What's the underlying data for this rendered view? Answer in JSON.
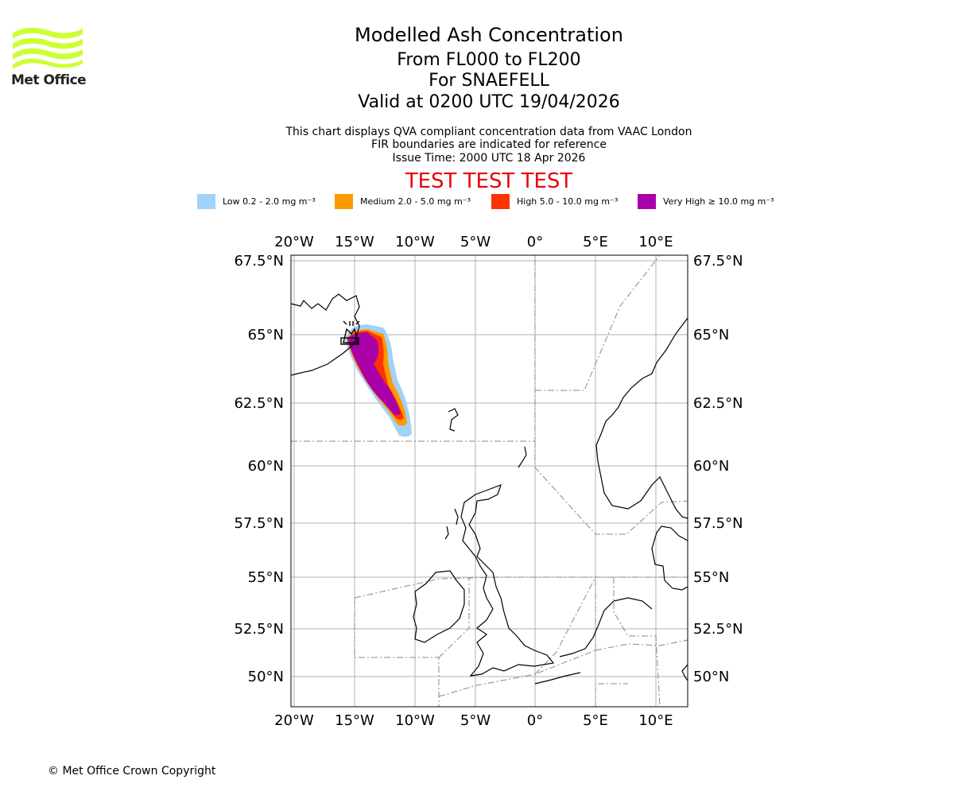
{
  "brand": {
    "name": "Met Office",
    "logo_color": "#ccff33"
  },
  "header": {
    "title": "Modelled Ash Concentration",
    "levels": "From FL000 to FL200",
    "volcano": "For SNAEFELL",
    "valid": "Valid at 0200 UTC 19/04/2026",
    "note_1": "This chart displays QVA compliant concentration data from VAAC London",
    "note_2": "FIR boundaries are indicated for reference",
    "issue_time": "Issue Time: 2000 UTC 18 Apr 2026",
    "test_banner": "TEST TEST TEST",
    "test_color": "#e8000b"
  },
  "legend": [
    {
      "label": "Low 0.2 - 2.0 mg m⁻³",
      "color": "#a0d2fa"
    },
    {
      "label": "Medium 2.0 - 5.0 mg m⁻³",
      "color": "#ff9900"
    },
    {
      "label": "High 5.0 - 10.0 mg m⁻³",
      "color": "#ff3300"
    },
    {
      "label": "Very High ≥ 10.0 mg m⁻³",
      "color": "#aa00aa"
    }
  ],
  "map": {
    "lon_ticks": [
      "20°W",
      "15°W",
      "10°W",
      "5°W",
      "0°",
      "5°E",
      "10°E"
    ],
    "lat_ticks": [
      "67.5°N",
      "65°N",
      "62.5°N",
      "60°N",
      "57.5°N",
      "55°N",
      "52.5°N",
      "50°N"
    ],
    "volcano_marker": "volcano-icon"
  },
  "footer": {
    "copyright": "© Met Office Crown Copyright"
  }
}
